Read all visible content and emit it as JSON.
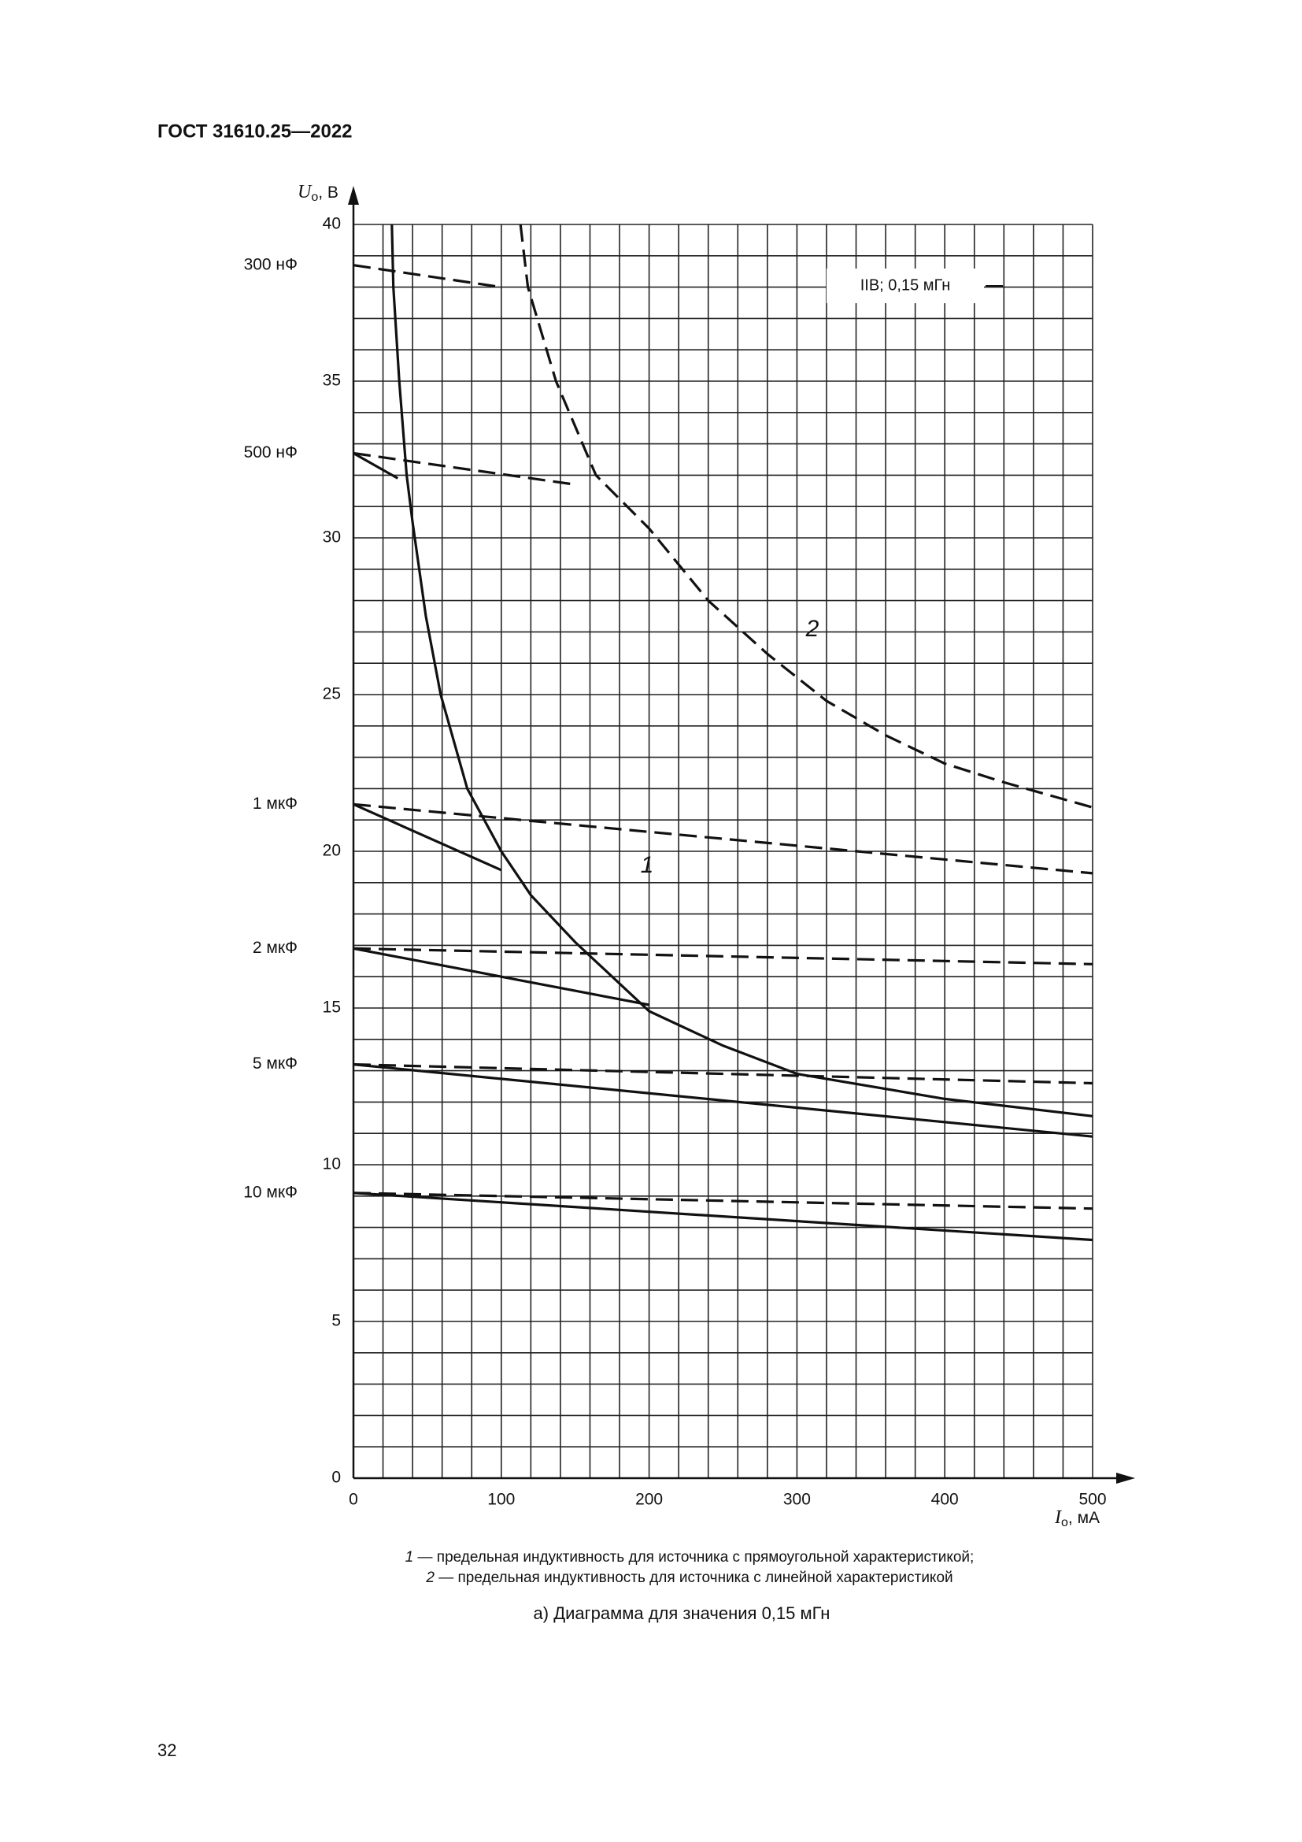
{
  "header": "ГОСТ 31610.25—2022",
  "chart_data": {
    "type": "line",
    "xlim": [
      0,
      500
    ],
    "ylim": [
      0,
      40
    ],
    "xticks": [
      0,
      100,
      200,
      300,
      400,
      500
    ],
    "yticks": [
      0,
      5,
      10,
      15,
      20,
      25,
      30,
      35,
      40
    ],
    "grid": true,
    "x_label": {
      "symbol": "I",
      "subscript": "o",
      "unit": ", мА"
    },
    "y_label": {
      "symbol": "U",
      "subscript": "o",
      "unit": ", В"
    },
    "annotation": "IIB; 0,15 мГн",
    "curves": [
      {
        "name": "1",
        "style": "solid",
        "x": [
          26,
          27,
          31,
          36,
          40,
          49,
          59,
          77,
          100,
          120,
          150,
          200,
          250,
          300,
          400,
          500
        ],
        "values": [
          40,
          38,
          35,
          32,
          30.5,
          27.5,
          25,
          22,
          20,
          18.6,
          17.1,
          14.9,
          13.8,
          12.9,
          12.1,
          11.55
        ]
      },
      {
        "name": "2",
        "style": "dashed",
        "x": [
          113,
          118,
          137,
          164,
          200,
          240,
          280,
          320,
          360,
          400,
          440,
          500
        ],
        "values": [
          40,
          38,
          35,
          32,
          30.3,
          28,
          26.3,
          24.8,
          23.7,
          22.8,
          22.2,
          21.4
        ]
      }
    ],
    "capacitance_lines": [
      {
        "label": "300 нФ",
        "dashed": {
          "x": [
            0,
            100
          ],
          "values": [
            38.7,
            38.0
          ]
        }
      },
      {
        "label": "500 нФ",
        "solid": {
          "x": [
            0,
            30
          ],
          "values": [
            32.7,
            31.9
          ]
        },
        "dashed": {
          "x": [
            0,
            150
          ],
          "values": [
            32.7,
            31.7
          ]
        }
      },
      {
        "label": "1 мкФ",
        "solid": {
          "x": [
            0,
            100
          ],
          "values": [
            21.5,
            19.4
          ]
        },
        "dashed": {
          "x": [
            0,
            500
          ],
          "values": [
            21.5,
            19.3
          ]
        }
      },
      {
        "label": "2 мкФ",
        "solid": {
          "x": [
            0,
            200
          ],
          "values": [
            16.9,
            15.1
          ]
        },
        "dashed": {
          "x": [
            0,
            500
          ],
          "values": [
            16.9,
            16.4
          ]
        }
      },
      {
        "label": "5 мкФ",
        "solid": {
          "x": [
            0,
            500
          ],
          "values": [
            13.2,
            10.9
          ]
        },
        "dashed": {
          "x": [
            0,
            500
          ],
          "values": [
            13.2,
            12.6
          ]
        }
      },
      {
        "label": "10 мкФ",
        "solid": {
          "x": [
            0,
            500
          ],
          "values": [
            9.1,
            7.6
          ]
        },
        "dashed": {
          "x": [
            0,
            500
          ],
          "values": [
            9.1,
            8.6
          ]
        }
      }
    ]
  },
  "notes": [
    {
      "number": "1",
      "text": " — предельная индуктивность для источника с прямоугольной характеристикой;"
    },
    {
      "number": "2",
      "text": " — предельная индуктивность для источника с линейной характеристикой"
    }
  ],
  "caption": "а) Диаграмма для значения 0,15 мГн",
  "page_number": "32"
}
